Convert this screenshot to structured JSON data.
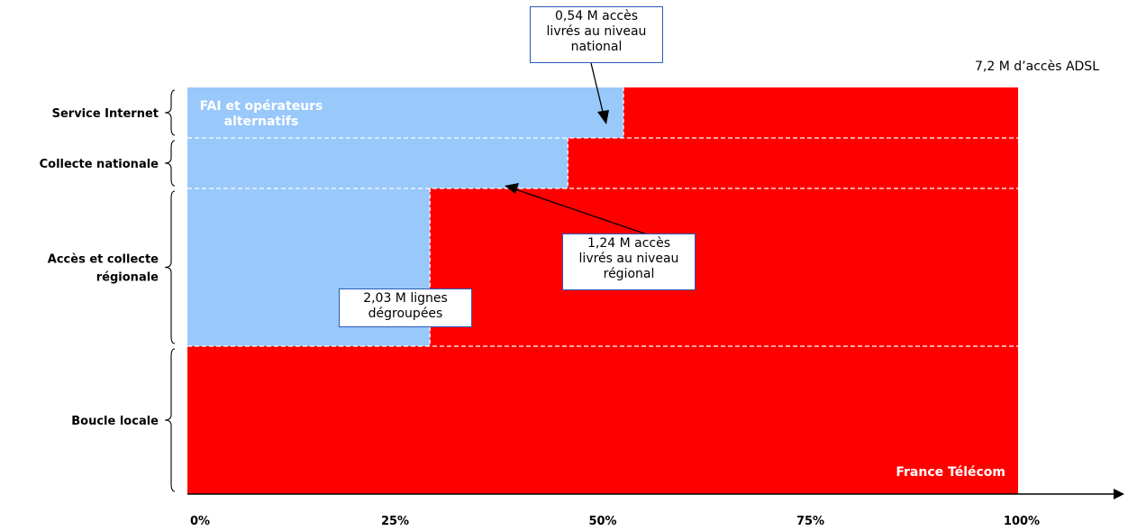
{
  "chart_data": {
    "type": "bar",
    "orientation": "horizontal-stacked",
    "title": "",
    "total_label": "7,2 M d’accès ADSL",
    "xlabel": "",
    "ylabel": "",
    "xlim": [
      0,
      100
    ],
    "x_ticks": [
      "0%",
      "25%",
      "50%",
      "75%",
      "100%"
    ],
    "categories": [
      "Service Internet",
      "Collecte nationale",
      "Accès et collecte régionale",
      "Boucle locale"
    ],
    "series": [
      {
        "name": "FAI et opérateurs alternatifs",
        "color": "#99c8fb",
        "values": [
          52.5,
          45.8,
          29.2,
          0
        ]
      },
      {
        "name": "France Télécom",
        "color": "#ff0000",
        "values": [
          47.5,
          54.2,
          70.8,
          100
        ]
      }
    ],
    "grid": false,
    "legend": "in-plot",
    "annotations": [
      {
        "id": "national",
        "lines": [
          "0,54 M accès",
          "livrés au niveau",
          "national"
        ]
      },
      {
        "id": "regional",
        "lines": [
          "1,24 M accès",
          "livrés au niveau",
          "régional"
        ]
      },
      {
        "id": "degroupees",
        "lines": [
          "2,03 M lignes",
          "dégroupées"
        ]
      }
    ]
  }
}
